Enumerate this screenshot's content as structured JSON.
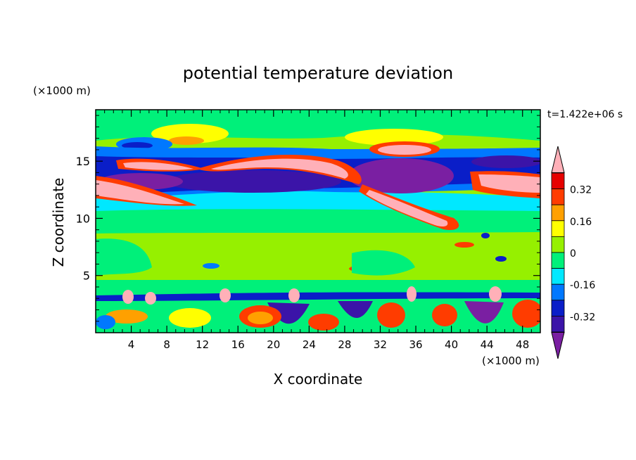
{
  "chart_data": {
    "type": "heatmap",
    "title": "potential temperature deviation",
    "xlabel": "X coordinate",
    "ylabel": "Z coordinate",
    "x_unit": "(×1000 m)",
    "y_unit": "(×1000 m)",
    "time_label": "t=1.422e+06 s",
    "xlim": [
      0,
      50
    ],
    "ylim": [
      0,
      19.5
    ],
    "x_ticks": [
      "4",
      "8",
      "12",
      "16",
      "20",
      "24",
      "28",
      "32",
      "36",
      "40",
      "44",
      "48"
    ],
    "y_ticks": [
      "5",
      "10",
      "15"
    ],
    "colorbar": {
      "labels": [
        "0.32",
        "0.16",
        "0",
        "-0.16",
        "-0.32"
      ],
      "levels": [
        -0.4,
        -0.32,
        -0.24,
        -0.16,
        -0.08,
        0,
        0.08,
        0.16,
        0.24,
        0.32,
        0.4
      ],
      "colors": [
        "#7A1FA2",
        "#3B14A8",
        "#0A1EC8",
        "#0078FF",
        "#00E8FF",
        "#00F07A",
        "#96F000",
        "#FFFF00",
        "#FFA000",
        "#FF3C00",
        "#E60000",
        "#FFB0B8"
      ]
    },
    "field_description_levels": [
      {
        "z": 14.0,
        "x_range": [
          0,
          10
        ],
        "value": 0.4
      },
      {
        "z": 15.3,
        "x_range": [
          2,
          10
        ],
        "value": 0.4
      },
      {
        "z": 14.8,
        "x_range": [
          13,
          33
        ],
        "value": 0.4
      },
      {
        "z": 13.3,
        "x_range": [
          14,
          27
        ],
        "value": -0.36
      },
      {
        "z": 14.5,
        "x_range": [
          29,
          39
        ],
        "value": -0.4
      },
      {
        "z": 11.0,
        "x_range": [
          31,
          39
        ],
        "value": 0.4
      },
      {
        "z": 16.2,
        "x_range": [
          32,
          37
        ],
        "value": 0.4
      },
      {
        "z": 13.8,
        "x_range": [
          44,
          50
        ],
        "value": 0.4
      },
      {
        "z": 3.0,
        "x_range": [
          0,
          50
        ],
        "value": -0.32
      }
    ]
  }
}
